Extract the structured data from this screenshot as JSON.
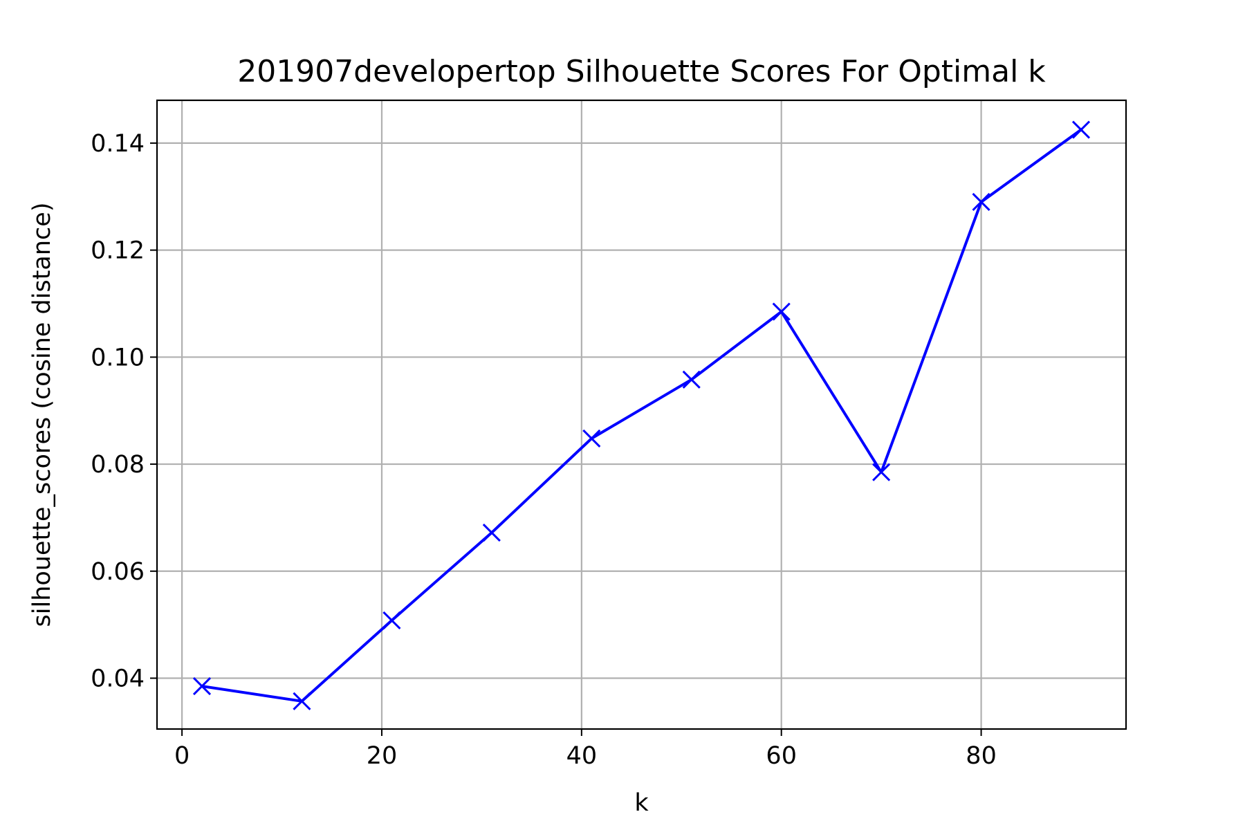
{
  "chart_data": {
    "type": "line",
    "title": "201907developertop Silhouette Scores For Optimal k",
    "xlabel": "k",
    "ylabel": "silhouette_scores (cosine distance)",
    "xlim": [
      -2.5,
      94.5
    ],
    "ylim": [
      0.0305,
      0.148
    ],
    "x_ticks": [
      0,
      20,
      40,
      60,
      80
    ],
    "y_ticks": [
      0.04,
      0.06,
      0.08,
      0.1,
      0.12,
      0.14
    ],
    "x_tick_labels": [
      "0",
      "20",
      "40",
      "60",
      "80"
    ],
    "y_tick_labels": [
      "0.04",
      "0.06",
      "0.08",
      "0.10",
      "0.12",
      "0.14"
    ],
    "grid": true,
    "legend": "none",
    "marker": "x",
    "color": "#0000ff",
    "series": [
      {
        "x": [
          2,
          12,
          21,
          31,
          41,
          51,
          60,
          70,
          80,
          90
        ],
        "values": [
          0.0385,
          0.0357,
          0.0508,
          0.0672,
          0.0848,
          0.0958,
          0.1085,
          0.0785,
          0.129,
          0.1425
        ]
      }
    ]
  }
}
